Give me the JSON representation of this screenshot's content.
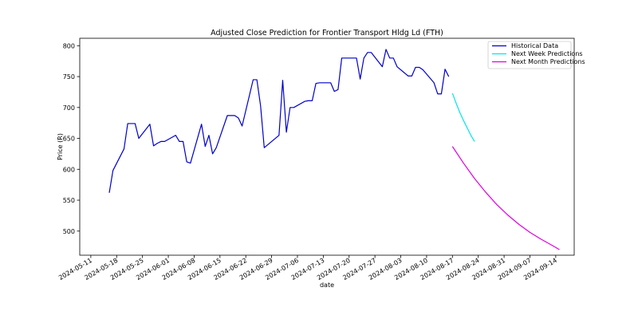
{
  "chart_data": {
    "type": "line",
    "title": "Adjusted Close Prediction for Frontier Transport Hldg Ld (FTH)",
    "xlabel": "date",
    "ylabel": "Price (R)",
    "xlim": [
      "2024-05-08",
      "2024-09-19"
    ],
    "ylim": [
      461,
      812
    ],
    "x_ticks": [
      "2024-05-11",
      "2024-05-18",
      "2024-05-25",
      "2024-06-01",
      "2024-06-08",
      "2024-06-15",
      "2024-06-22",
      "2024-06-29",
      "2024-07-06",
      "2024-07-13",
      "2024-07-20",
      "2024-07-27",
      "2024-08-03",
      "2024-08-10",
      "2024-08-17",
      "2024-08-24",
      "2024-08-31",
      "2024-09-07",
      "2024-09-14"
    ],
    "y_ticks": [
      500,
      550,
      600,
      650,
      700,
      750,
      800
    ],
    "grid": false,
    "legend_position": "top-right",
    "series": [
      {
        "name": "Historical Data",
        "color": "#0000cd",
        "x": [
          "2024-05-16",
          "2024-05-17",
          "2024-05-20",
          "2024-05-21",
          "2024-05-22",
          "2024-05-23",
          "2024-05-24",
          "2024-05-27",
          "2024-05-28",
          "2024-05-29",
          "2024-05-30",
          "2024-05-31",
          "2024-06-03",
          "2024-06-04",
          "2024-06-05",
          "2024-06-06",
          "2024-06-07",
          "2024-06-10",
          "2024-06-11",
          "2024-06-12",
          "2024-06-13",
          "2024-06-14",
          "2024-06-17",
          "2024-06-18",
          "2024-06-19",
          "2024-06-20",
          "2024-06-21",
          "2024-06-24",
          "2024-06-25",
          "2024-06-26",
          "2024-06-27",
          "2024-06-28",
          "2024-07-01",
          "2024-07-02",
          "2024-07-03",
          "2024-07-04",
          "2024-07-05",
          "2024-07-08",
          "2024-07-09",
          "2024-07-10",
          "2024-07-11",
          "2024-07-12",
          "2024-07-15",
          "2024-07-16",
          "2024-07-17",
          "2024-07-18",
          "2024-07-19",
          "2024-07-22",
          "2024-07-23",
          "2024-07-24",
          "2024-07-25",
          "2024-07-26",
          "2024-07-29",
          "2024-07-30",
          "2024-07-31",
          "2024-08-01",
          "2024-08-02",
          "2024-08-05",
          "2024-08-06",
          "2024-08-07",
          "2024-08-08",
          "2024-08-09",
          "2024-08-12",
          "2024-08-13",
          "2024-08-14",
          "2024-08-15",
          "2024-08-16"
        ],
        "values": [
          562,
          598,
          633,
          674,
          674,
          674,
          650,
          673,
          638,
          642,
          645,
          645,
          655,
          645,
          645,
          612,
          610,
          673,
          637,
          655,
          625,
          635,
          687,
          687,
          687,
          683,
          670,
          745,
          745,
          703,
          635,
          640,
          655,
          744,
          660,
          700,
          700,
          710,
          711,
          711,
          739,
          740,
          740,
          726,
          729,
          780,
          780,
          780,
          746,
          780,
          789,
          789,
          766,
          794,
          780,
          780,
          766,
          751,
          751,
          765,
          765,
          761,
          740,
          722,
          722,
          762,
          750
        ]
      },
      {
        "name": "Next Week Predictions",
        "color": "#00e5ee",
        "x": [
          "2024-08-17",
          "2024-08-18",
          "2024-08-19",
          "2024-08-20",
          "2024-08-21",
          "2024-08-22",
          "2024-08-23"
        ],
        "values": [
          723,
          707,
          692,
          679,
          667,
          655,
          645
        ]
      },
      {
        "name": "Next Month Predictions",
        "color": "#e000e0",
        "x": [
          "2024-08-17",
          "2024-08-20",
          "2024-08-23",
          "2024-08-26",
          "2024-08-29",
          "2024-09-01",
          "2024-09-04",
          "2024-09-07",
          "2024-09-10",
          "2024-09-13",
          "2024-09-15"
        ],
        "values": [
          637,
          610,
          585,
          563,
          543,
          526,
          511,
          498,
          487,
          477,
          470
        ]
      }
    ]
  }
}
